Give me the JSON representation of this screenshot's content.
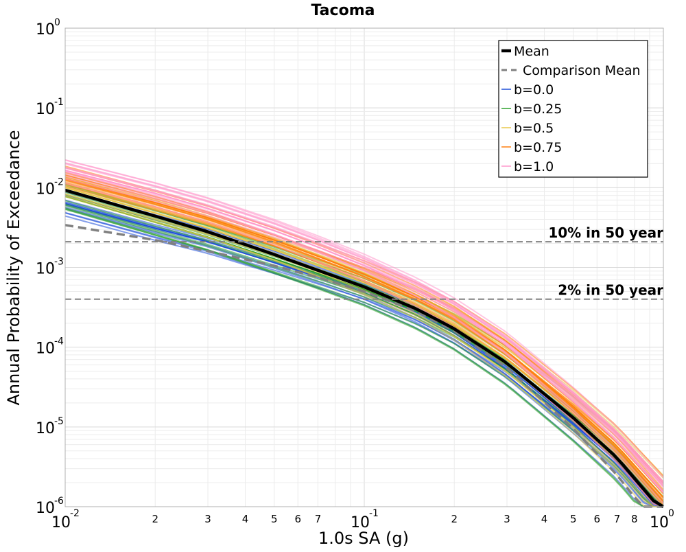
{
  "chart_data": {
    "type": "line",
    "title": "Tacoma",
    "xlabel": "1.0s SA (g)",
    "ylabel": "Annual Probability of Exceedance",
    "xscale": "log",
    "yscale": "log",
    "xlim": [
      0.01,
      1.0
    ],
    "ylim": [
      1e-06,
      1.0
    ],
    "grid": true,
    "legend_position": "top-right",
    "x_major_ticks": [
      {
        "value": 0.01,
        "base": "10",
        "exp": "-2"
      },
      {
        "value": 0.1,
        "base": "10",
        "exp": "-1"
      },
      {
        "value": 1.0,
        "base": "10",
        "exp": "0"
      }
    ],
    "x_minor_tick_labels": [
      {
        "value": 0.02,
        "label": "2"
      },
      {
        "value": 0.03,
        "label": "3"
      },
      {
        "value": 0.04,
        "label": "4"
      },
      {
        "value": 0.05,
        "label": "5"
      },
      {
        "value": 0.06,
        "label": "6"
      },
      {
        "value": 0.07,
        "label": "7"
      },
      {
        "value": 0.2,
        "label": "2"
      },
      {
        "value": 0.3,
        "label": "3"
      },
      {
        "value": 0.4,
        "label": "4"
      },
      {
        "value": 0.5,
        "label": "5"
      },
      {
        "value": 0.6,
        "label": "6"
      },
      {
        "value": 0.7,
        "label": "7"
      },
      {
        "value": 0.8,
        "label": "8"
      }
    ],
    "y_major_ticks": [
      {
        "value": 1.0,
        "base": "10",
        "exp": "0"
      },
      {
        "value": 0.1,
        "base": "10",
        "exp": "-1"
      },
      {
        "value": 0.01,
        "base": "10",
        "exp": "-2"
      },
      {
        "value": 0.001,
        "base": "10",
        "exp": "-3"
      },
      {
        "value": 0.0001,
        "base": "10",
        "exp": "-4"
      },
      {
        "value": 1e-05,
        "base": "10",
        "exp": "-5"
      },
      {
        "value": 1e-06,
        "base": "10",
        "exp": "-6"
      }
    ],
    "x": [
      0.01,
      0.02,
      0.03,
      0.05,
      0.07,
      0.1,
      0.15,
      0.2,
      0.3,
      0.5,
      0.7,
      1.0
    ],
    "mean": {
      "name": "Mean",
      "color": "#000000",
      "style": "solid",
      "values": [
        0.0093,
        0.0044,
        0.0028,
        0.00145,
        0.00092,
        0.00057,
        0.0003,
        0.00017,
        6.3e-05,
        1.3e-05,
        4.1e-06,
        8.5e-07
      ]
    },
    "comparison_mean": {
      "name": "Comparison Mean",
      "color": "#808080",
      "style": "dashed",
      "values": [
        0.0034,
        0.0022,
        0.0016,
        0.00105,
        0.00075,
        0.0005,
        0.00028,
        0.00016,
        5.5e-05,
        9.5e-06,
        2.5e-06,
        4.5e-07
      ]
    },
    "series": [
      {
        "name": "b=0.0",
        "color": "#1f4fd8",
        "values": [
          0.0063,
          0.0031,
          0.0021,
          0.00115,
          0.00076,
          0.00048,
          0.00025,
          0.00014,
          5.2e-05,
          1.1e-05,
          3.7e-06,
          8e-07
        ]
      },
      {
        "name": "b=0.25",
        "color": "#2ca02c",
        "values": [
          0.0078,
          0.0037,
          0.0024,
          0.00128,
          0.00084,
          0.00053,
          0.00028,
          0.00016,
          6e-05,
          1.3e-05,
          4.3e-06,
          9.5e-07
        ]
      },
      {
        "name": "b=0.5",
        "color": "#e8c84a",
        "values": [
          0.01,
          0.0048,
          0.0031,
          0.00165,
          0.00105,
          0.00064,
          0.00034,
          0.00019,
          7e-05,
          1.5e-05,
          4.8e-06,
          1.1e-06
        ]
      },
      {
        "name": "b=0.75",
        "color": "#ff7f0e",
        "values": [
          0.013,
          0.0065,
          0.0042,
          0.0022,
          0.00138,
          0.00082,
          0.00042,
          0.00024,
          8.8e-05,
          1.8e-05,
          5.8e-06,
          1.3e-06
        ]
      },
      {
        "name": "b=1.0",
        "color": "#ff99cc",
        "values": [
          0.0165,
          0.0085,
          0.0055,
          0.0029,
          0.0018,
          0.00105,
          0.00052,
          0.00029,
          0.000105,
          2.1e-05,
          6.6e-06,
          1.5e-06
        ]
      }
    ],
    "reference_lines": [
      {
        "label": "10% in 50 year",
        "y": 0.0021,
        "color": "#808080"
      },
      {
        "label": "2% in 50 year",
        "y": 0.0004,
        "color": "#808080"
      }
    ]
  }
}
